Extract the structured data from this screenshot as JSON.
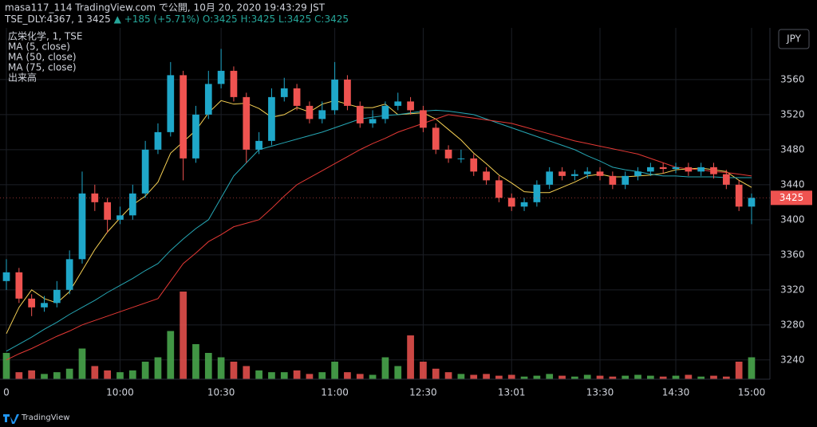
{
  "header": {
    "line1": "masa117_114 TradingView.com で公開, 10月 20, 2020 19:43:29 JST",
    "symbol": "TSE_DLY:4367, 1",
    "price": "3425",
    "change": "▲ +185 (+5.71%)",
    "ohlc": [
      "O:3425",
      "H:3425",
      "L:3425",
      "C:3425"
    ]
  },
  "footer": {
    "brand": "TradingView"
  },
  "chart_data": {
    "type": "candlestick",
    "name": "広栄化学, 1, TSE",
    "currency": "JPY",
    "up_color": "#1fa7c9",
    "down_color": "#ef5350",
    "ylim": [
      3218,
      3619
    ],
    "yticks": [
      3240,
      3280,
      3320,
      3360,
      3400,
      3440,
      3480,
      3520,
      3560
    ],
    "xticks": [
      {
        "value": 0,
        "label": "0"
      },
      {
        "value": 9,
        "label": "10:00"
      },
      {
        "value": 17,
        "label": "10:30"
      },
      {
        "value": 26,
        "label": "11:00"
      },
      {
        "value": 33,
        "label": "12:30"
      },
      {
        "value": 40,
        "label": "13:01"
      },
      {
        "value": 47,
        "label": "13:30"
      },
      {
        "value": 53,
        "label": "14:30"
      },
      {
        "value": 59,
        "label": "15:00"
      }
    ],
    "grid": true,
    "open": [
      3330,
      3340,
      3310,
      3300,
      3305,
      3320,
      3355,
      3430,
      3420,
      3400,
      3405,
      3430,
      3480,
      3500,
      3565,
      3470,
      3520,
      3555,
      3570,
      3540,
      3480,
      3490,
      3540,
      3550,
      3530,
      3515,
      3525,
      3560,
      3530,
      3510,
      3515,
      3530,
      3535,
      3525,
      3505,
      3480,
      3470,
      3470,
      3455,
      3445,
      3425,
      3415,
      3420,
      3440,
      3455,
      3450,
      3452,
      3455,
      3450,
      3440,
      3450,
      3455,
      3460,
      3458,
      3460,
      3455,
      3460,
      3452,
      3440,
      3415
    ],
    "high": [
      3355,
      3345,
      3315,
      3313,
      3330,
      3365,
      3455,
      3440,
      3425,
      3415,
      3440,
      3490,
      3510,
      3580,
      3570,
      3530,
      3570,
      3595,
      3575,
      3545,
      3500,
      3550,
      3562,
      3555,
      3535,
      3535,
      3580,
      3565,
      3535,
      3525,
      3535,
      3545,
      3540,
      3530,
      3510,
      3485,
      3480,
      3475,
      3460,
      3450,
      3430,
      3425,
      3445,
      3460,
      3460,
      3457,
      3460,
      3460,
      3455,
      3455,
      3460,
      3465,
      3465,
      3465,
      3465,
      3465,
      3465,
      3457,
      3445,
      3430
    ],
    "low": [
      3320,
      3305,
      3290,
      3295,
      3300,
      3315,
      3350,
      3410,
      3385,
      3395,
      3400,
      3425,
      3475,
      3495,
      3445,
      3465,
      3515,
      3550,
      3535,
      3465,
      3475,
      3485,
      3535,
      3525,
      3510,
      3510,
      3520,
      3525,
      3505,
      3505,
      3510,
      3525,
      3520,
      3500,
      3475,
      3465,
      3465,
      3450,
      3440,
      3420,
      3410,
      3410,
      3415,
      3435,
      3445,
      3445,
      3447,
      3445,
      3435,
      3435,
      3445,
      3450,
      3453,
      3453,
      3450,
      3450,
      3447,
      3435,
      3410,
      3395
    ],
    "close": [
      3340,
      3310,
      3300,
      3305,
      3320,
      3355,
      3430,
      3420,
      3400,
      3405,
      3430,
      3480,
      3500,
      3565,
      3470,
      3520,
      3555,
      3570,
      3540,
      3480,
      3490,
      3540,
      3550,
      3530,
      3515,
      3525,
      3560,
      3530,
      3510,
      3515,
      3530,
      3535,
      3525,
      3505,
      3480,
      3470,
      3470,
      3455,
      3445,
      3425,
      3415,
      3420,
      3440,
      3455,
      3450,
      3452,
      3455,
      3450,
      3440,
      3450,
      3455,
      3460,
      3458,
      3460,
      3455,
      3460,
      3452,
      3440,
      3415,
      3425
    ],
    "series": [
      {
        "name": "MA (5, close)",
        "color": "#f7d154",
        "values": [
          3270,
          3300,
          3320,
          3310,
          3305,
          3318,
          3342,
          3366,
          3386,
          3402,
          3417,
          3427,
          3443,
          3476,
          3489,
          3502,
          3522,
          3536,
          3532,
          3533,
          3527,
          3517,
          3520,
          3528,
          3523,
          3532,
          3536,
          3532,
          3528,
          3528,
          3532,
          3520,
          3521,
          3522,
          3515,
          3503,
          3491,
          3476,
          3464,
          3451,
          3442,
          3432,
          3431,
          3431,
          3437,
          3443,
          3450,
          3452,
          3449,
          3449,
          3450,
          3451,
          3453,
          3457,
          3458,
          3459,
          3457,
          3455,
          3445,
          3437
        ]
      },
      {
        "name": "MA (50, close)",
        "color": "#26a7b5",
        "values": [
          3250,
          3258,
          3266,
          3275,
          3283,
          3292,
          3300,
          3308,
          3317,
          3325,
          3333,
          3342,
          3350,
          3365,
          3378,
          3390,
          3400,
          3425,
          3450,
          3465,
          3480,
          3484,
          3488,
          3492,
          3496,
          3500,
          3505,
          3510,
          3515,
          3517,
          3519,
          3520,
          3522,
          3524,
          3525,
          3524,
          3522,
          3520,
          3515,
          3510,
          3505,
          3500,
          3495,
          3490,
          3485,
          3480,
          3473,
          3467,
          3460,
          3457,
          3455,
          3452,
          3450,
          3450,
          3449,
          3449,
          3449,
          3448,
          3448,
          3448
        ]
      },
      {
        "name": "MA (75, close)",
        "color": "#e53935",
        "values": [
          3240,
          3247,
          3253,
          3260,
          3267,
          3273,
          3280,
          3285,
          3290,
          3295,
          3300,
          3305,
          3310,
          3330,
          3350,
          3362,
          3375,
          3383,
          3392,
          3396,
          3400,
          3413,
          3427,
          3440,
          3448,
          3456,
          3464,
          3472,
          3480,
          3487,
          3493,
          3500,
          3505,
          3510,
          3515,
          3520,
          3518,
          3516,
          3514,
          3512,
          3510,
          3506,
          3502,
          3498,
          3494,
          3490,
          3487,
          3484,
          3481,
          3478,
          3475,
          3470,
          3465,
          3460,
          3458,
          3457,
          3455,
          3454,
          3452,
          3450
        ]
      }
    ],
    "volume": {
      "name": "出来高",
      "up_color": "#4caf50",
      "down_color": "#ef5350",
      "vlim": [
        0,
        100
      ],
      "values": [
        30,
        8,
        10,
        6,
        8,
        12,
        35,
        15,
        10,
        8,
        10,
        20,
        25,
        55,
        100,
        40,
        30,
        25,
        20,
        15,
        10,
        8,
        8,
        10,
        6,
        8,
        20,
        8,
        6,
        5,
        25,
        15,
        50,
        20,
        12,
        8,
        6,
        5,
        6,
        4,
        5,
        3,
        4,
        6,
        4,
        3,
        5,
        4,
        3,
        4,
        5,
        4,
        3,
        4,
        5,
        3,
        4,
        3,
        20,
        25
      ]
    }
  }
}
